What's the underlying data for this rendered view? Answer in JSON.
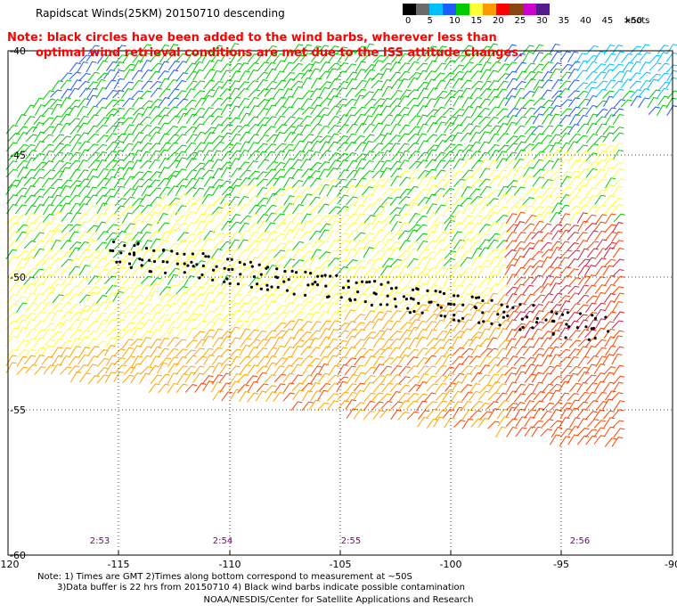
{
  "title": "Rapidscat Winds(25KM) 20150710 descending",
  "note": {
    "line1": "Note: black circles have been added to the wind barbs, wherever less than",
    "line2": "optimal wind retrieval conditions are met due to the ISS attitude changes."
  },
  "legend": {
    "unit": "knots",
    "labels": [
      "0",
      "5",
      "10",
      "15",
      "20",
      "25",
      "30",
      "35",
      "40",
      "45",
      ">50"
    ],
    "colors": [
      "#000000",
      "#6b6b6b",
      "#00bfff",
      "#1f5cff",
      "#00cc00",
      "#ffff33",
      "#ff9900",
      "#ff0000",
      "#8b4513",
      "#cc00cc",
      "#551a8b"
    ]
  },
  "axes": {
    "lon_labels": [
      "-120",
      "-115",
      "-110",
      "-105",
      "-100",
      "-95",
      "-90"
    ],
    "lat_labels": [
      "-40",
      "-45",
      "-50",
      "-55",
      "-60"
    ]
  },
  "times": [
    "2:53",
    "2:54",
    "2:55",
    "2:56"
  ],
  "footer": {
    "line1": "Note: 1) Times are GMT 2)Times along bottom correspond to measurement at ~50S",
    "line2": "3)Data buffer is 22 hrs from 20150710 4) Black wind barbs indicate possible contamination",
    "credit": "NOAA/NESDIS/Center for Satellite Applications and Research"
  },
  "colors": {
    "band_20_knots": "#ffff33",
    "band_25_knots": "#ffa500",
    "band_30_knots": "#ff4500",
    "band_15_knots": "#00cc00",
    "band_10_knots": "#1f5cff",
    "band_5_knots": "#00bfff",
    "quality_flag_circle": "#000000",
    "time_label": "#800080"
  }
}
